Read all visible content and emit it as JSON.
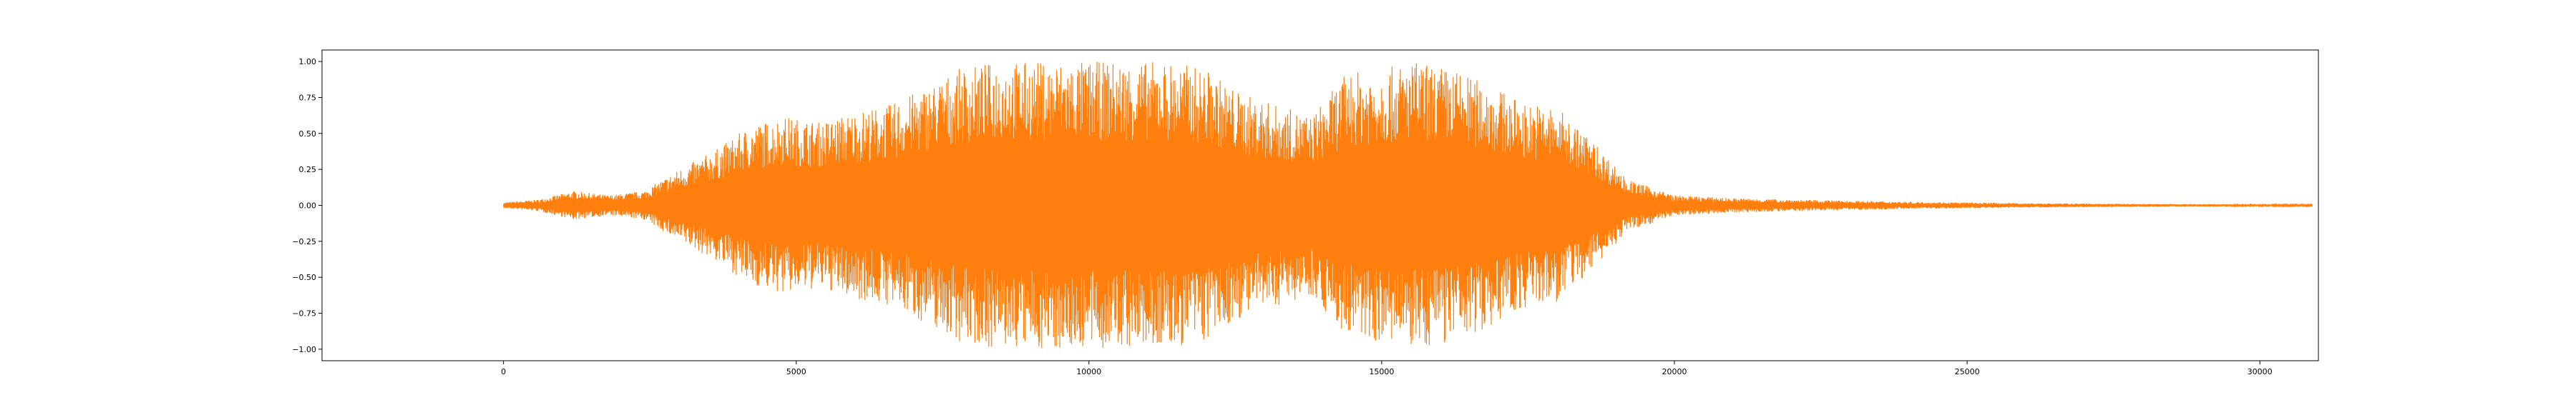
{
  "chart_data": {
    "type": "line",
    "title": "",
    "xlabel": "",
    "ylabel": "",
    "xlim": [
      -3100,
      31000
    ],
    "ylim": [
      -1.08,
      1.08
    ],
    "grid": false,
    "x_ticks": [
      0,
      5000,
      10000,
      15000,
      20000,
      25000,
      30000
    ],
    "y_ticks": [
      1.0,
      0.75,
      0.5,
      0.25,
      0.0,
      -0.25,
      -0.5,
      -0.75,
      -1.0
    ],
    "x_tick_labels": [
      "0",
      "5000",
      "10000",
      "15000",
      "20000",
      "25000",
      "30000"
    ],
    "y_tick_labels": [
      "1.00",
      "0.75",
      "0.50",
      "0.25",
      "0.00",
      "−0.25",
      "−0.50",
      "−0.75",
      "−1.00"
    ],
    "series": [
      {
        "color": "#ff7f0e",
        "x_range": [
          0,
          30900
        ],
        "envelope": [
          [
            0,
            0.02
          ],
          [
            600,
            0.04
          ],
          [
            1200,
            0.1
          ],
          [
            1800,
            0.07
          ],
          [
            2400,
            0.1
          ],
          [
            3000,
            0.25
          ],
          [
            3600,
            0.38
          ],
          [
            4200,
            0.55
          ],
          [
            4800,
            0.62
          ],
          [
            5400,
            0.58
          ],
          [
            6000,
            0.65
          ],
          [
            6600,
            0.7
          ],
          [
            7200,
            0.82
          ],
          [
            7800,
            0.95
          ],
          [
            8400,
            1.0
          ],
          [
            9000,
            1.0
          ],
          [
            9600,
            1.0
          ],
          [
            10200,
            1.0
          ],
          [
            10800,
            1.0
          ],
          [
            11400,
            1.0
          ],
          [
            12000,
            0.95
          ],
          [
            12600,
            0.78
          ],
          [
            13200,
            0.7
          ],
          [
            13800,
            0.62
          ],
          [
            14400,
            0.92
          ],
          [
            15000,
            0.95
          ],
          [
            15600,
            1.0
          ],
          [
            16200,
            0.95
          ],
          [
            16800,
            0.85
          ],
          [
            17400,
            0.72
          ],
          [
            18000,
            0.68
          ],
          [
            18600,
            0.45
          ],
          [
            19200,
            0.18
          ],
          [
            20000,
            0.07
          ],
          [
            21000,
            0.05
          ],
          [
            22000,
            0.04
          ],
          [
            24000,
            0.025
          ],
          [
            26000,
            0.015
          ],
          [
            28000,
            0.01
          ],
          [
            30900,
            0.005
          ]
        ]
      }
    ]
  }
}
